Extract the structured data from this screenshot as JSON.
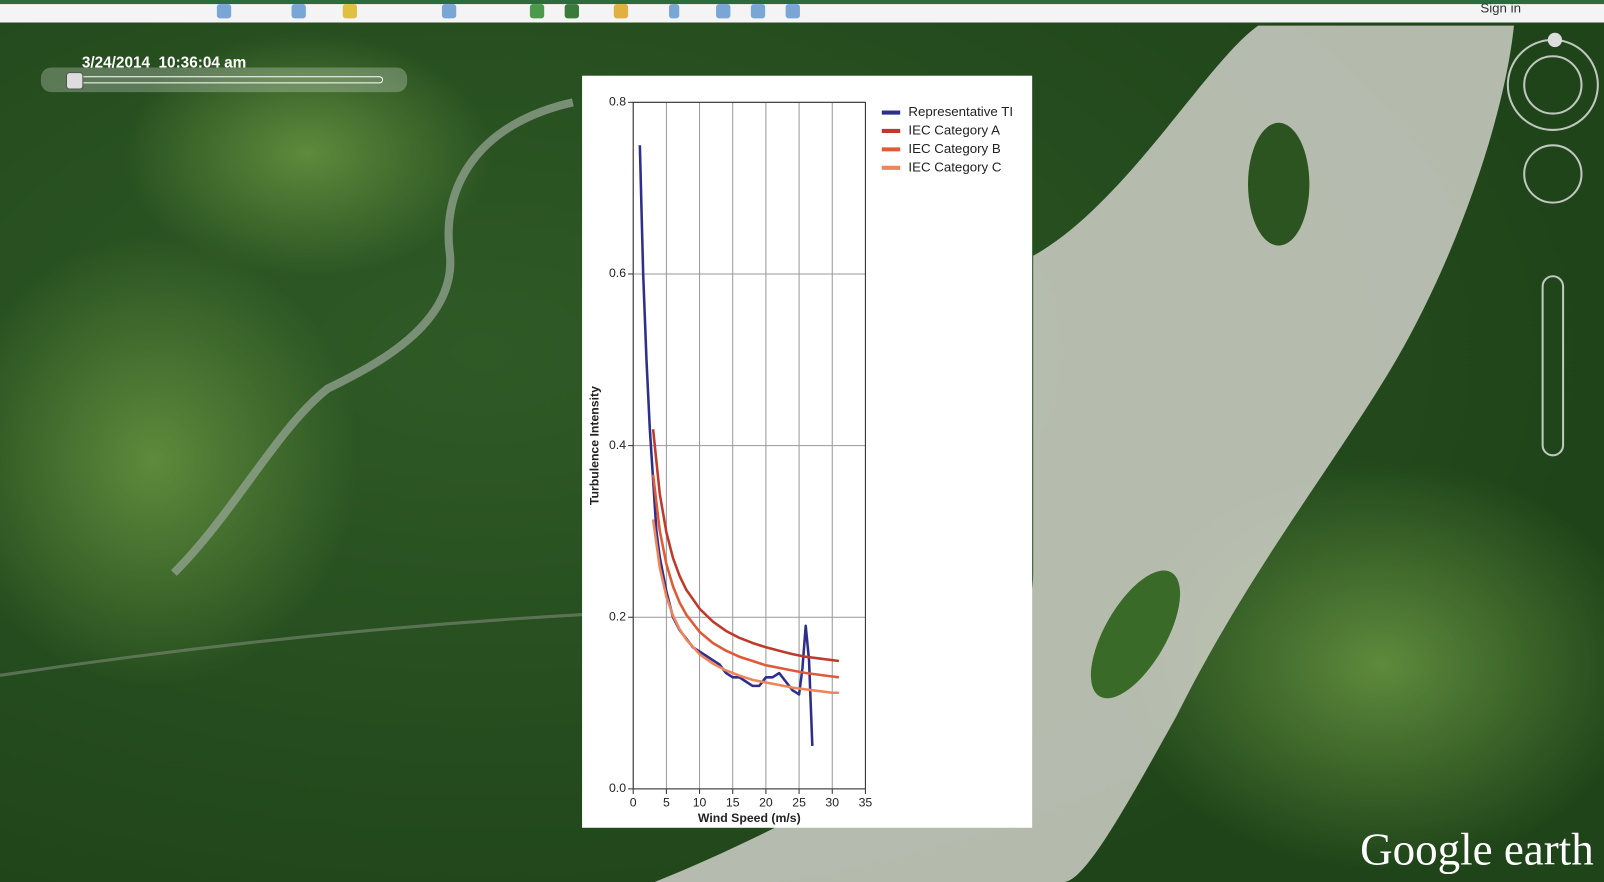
{
  "app": {
    "timestamp": "3/24/2014  10:36:04 am",
    "sign_in": "Sign in",
    "logo": "Google earth"
  },
  "chart_data": {
    "type": "line",
    "xlabel": "Wind Speed (m/s)",
    "ylabel": "Turbulence Intensity",
    "xlim": [
      0,
      35
    ],
    "ylim": [
      0,
      0.8
    ],
    "xticks": [
      0,
      5,
      10,
      15,
      20,
      25,
      30,
      35
    ],
    "yticks": [
      {
        "value": 0,
        "label": "0.0"
      },
      0.2,
      0.4,
      0.6,
      0.8
    ],
    "grid": true,
    "legend": "outside-right",
    "series": [
      {
        "name": "Representative TI",
        "color": "#2e2f8c",
        "x": [
          1,
          1.5,
          2,
          2.5,
          3,
          3.5,
          4,
          5,
          6,
          7,
          8,
          9,
          10,
          11,
          12,
          13,
          14,
          15,
          16,
          17,
          18,
          19,
          20,
          21,
          22,
          23,
          24,
          25,
          25.5,
          26,
          26.5,
          27
        ],
        "values": [
          0.75,
          0.6,
          0.5,
          0.42,
          0.36,
          0.3,
          0.27,
          0.23,
          0.2,
          0.185,
          0.175,
          0.165,
          0.16,
          0.155,
          0.15,
          0.145,
          0.135,
          0.13,
          0.13,
          0.125,
          0.12,
          0.12,
          0.13,
          0.13,
          0.135,
          0.125,
          0.115,
          0.11,
          0.14,
          0.19,
          0.15,
          0.05
        ]
      },
      {
        "name": "IEC Category A",
        "color": "#c0392b",
        "x": [
          3,
          4,
          5,
          6,
          7,
          8,
          10,
          12,
          14,
          16,
          18,
          20,
          22,
          24,
          26,
          28,
          30,
          31
        ],
        "values": [
          0.419,
          0.344,
          0.299,
          0.269,
          0.248,
          0.232,
          0.21,
          0.195,
          0.184,
          0.176,
          0.17,
          0.165,
          0.161,
          0.157,
          0.154,
          0.152,
          0.15,
          0.149
        ]
      },
      {
        "name": "IEC Category B",
        "color": "#e05a38",
        "x": [
          3,
          4,
          5,
          6,
          7,
          8,
          10,
          12,
          14,
          16,
          18,
          20,
          22,
          24,
          26,
          28,
          30,
          31
        ],
        "values": [
          0.366,
          0.301,
          0.262,
          0.236,
          0.217,
          0.203,
          0.183,
          0.17,
          0.161,
          0.154,
          0.149,
          0.144,
          0.141,
          0.138,
          0.135,
          0.133,
          0.131,
          0.13
        ]
      },
      {
        "name": "IEC Category C",
        "color": "#f0845a",
        "x": [
          3,
          4,
          5,
          6,
          7,
          8,
          10,
          12,
          14,
          16,
          18,
          20,
          22,
          24,
          26,
          28,
          30,
          31
        ],
        "values": [
          0.314,
          0.258,
          0.224,
          0.202,
          0.186,
          0.174,
          0.157,
          0.146,
          0.138,
          0.132,
          0.127,
          0.124,
          0.121,
          0.118,
          0.116,
          0.114,
          0.112,
          0.112
        ]
      }
    ]
  }
}
